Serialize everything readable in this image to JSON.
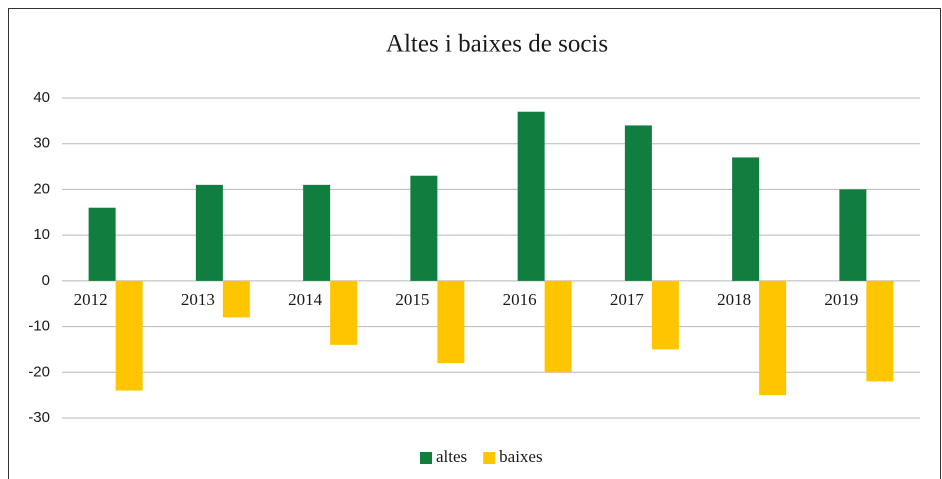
{
  "chart_data": {
    "type": "bar",
    "title": "Altes i baixes de socis",
    "categories": [
      "2012",
      "2013",
      "2014",
      "2015",
      "2016",
      "2017",
      "2018",
      "2019"
    ],
    "series": [
      {
        "name": "altes",
        "color": "#0f7e3e",
        "values": [
          16,
          21,
          21,
          23,
          37,
          34,
          27,
          20
        ]
      },
      {
        "name": "baixes",
        "color": "#ffc600",
        "values": [
          -24,
          -8,
          -14,
          -18,
          -20,
          -15,
          -25,
          -22
        ]
      }
    ],
    "ylim": [
      -30,
      40
    ],
    "yticks": [
      -30,
      -20,
      -10,
      0,
      10,
      20,
      30,
      40
    ],
    "grid": true,
    "legend": "bottom"
  }
}
